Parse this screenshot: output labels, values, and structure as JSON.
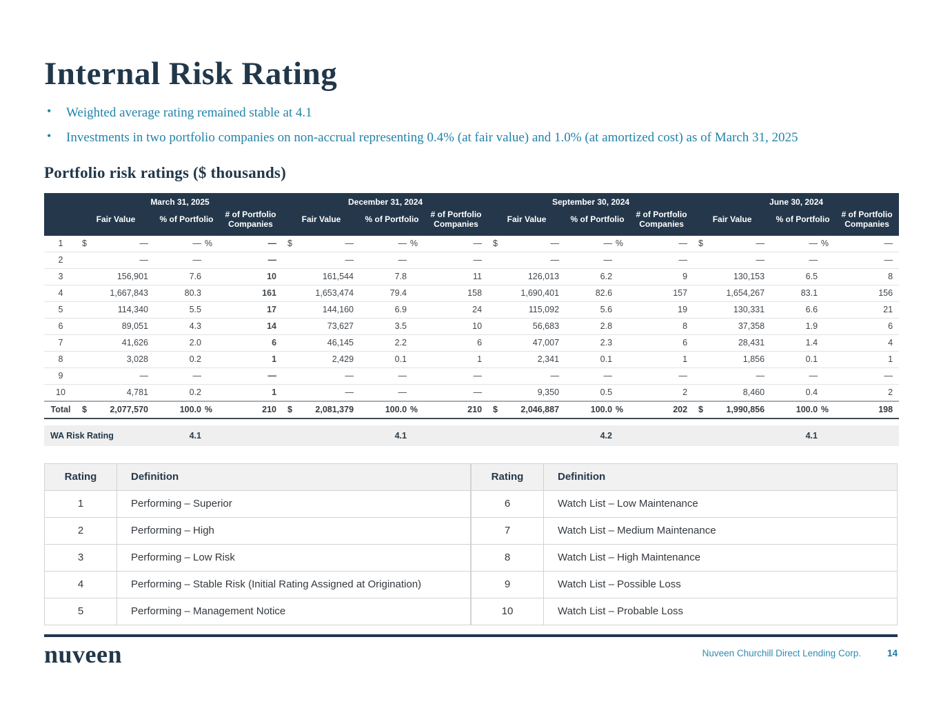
{
  "slide": {
    "title": "Internal Risk Rating",
    "bullets": [
      "Weighted average rating remained stable at 4.1",
      "Investments in two portfolio companies on non-accrual representing 0.4% (at fair value) and 1.0% (at amortized cost) as of March 31, 2025"
    ],
    "section_heading": "Portfolio risk ratings ($ thousands)"
  },
  "risk_table": {
    "period_headers": [
      "March 31, 2025",
      "December 31, 2024",
      "September 30, 2024",
      "June 30, 2024"
    ],
    "column_headers": [
      "Fair Value",
      "% of Portfolio",
      "# of Portfolio Companies"
    ],
    "rows": [
      {
        "label": "1",
        "symbols": true,
        "values": [
          [
            "—",
            "—",
            "—"
          ],
          [
            "—",
            "—",
            "—"
          ],
          [
            "—",
            "—",
            "—"
          ],
          [
            "—",
            "—",
            "—"
          ]
        ]
      },
      {
        "label": "2",
        "symbols": false,
        "values": [
          [
            "—",
            "—",
            "—"
          ],
          [
            "—",
            "—",
            "—"
          ],
          [
            "—",
            "—",
            "—"
          ],
          [
            "—",
            "—",
            "—"
          ]
        ]
      },
      {
        "label": "3",
        "symbols": false,
        "values": [
          [
            "156,901",
            "7.6",
            "10"
          ],
          [
            "161,544",
            "7.8",
            "11"
          ],
          [
            "126,013",
            "6.2",
            "9"
          ],
          [
            "130,153",
            "6.5",
            "8"
          ]
        ]
      },
      {
        "label": "4",
        "symbols": false,
        "values": [
          [
            "1,667,843",
            "80.3",
            "161"
          ],
          [
            "1,653,474",
            "79.4",
            "158"
          ],
          [
            "1,690,401",
            "82.6",
            "157"
          ],
          [
            "1,654,267",
            "83.1",
            "156"
          ]
        ]
      },
      {
        "label": "5",
        "symbols": false,
        "values": [
          [
            "114,340",
            "5.5",
            "17"
          ],
          [
            "144,160",
            "6.9",
            "24"
          ],
          [
            "115,092",
            "5.6",
            "19"
          ],
          [
            "130,331",
            "6.6",
            "21"
          ]
        ]
      },
      {
        "label": "6",
        "symbols": false,
        "values": [
          [
            "89,051",
            "4.3",
            "14"
          ],
          [
            "73,627",
            "3.5",
            "10"
          ],
          [
            "56,683",
            "2.8",
            "8"
          ],
          [
            "37,358",
            "1.9",
            "6"
          ]
        ]
      },
      {
        "label": "7",
        "symbols": false,
        "values": [
          [
            "41,626",
            "2.0",
            "6"
          ],
          [
            "46,145",
            "2.2",
            "6"
          ],
          [
            "47,007",
            "2.3",
            "6"
          ],
          [
            "28,431",
            "1.4",
            "4"
          ]
        ]
      },
      {
        "label": "8",
        "symbols": false,
        "values": [
          [
            "3,028",
            "0.2",
            "1"
          ],
          [
            "2,429",
            "0.1",
            "1"
          ],
          [
            "2,341",
            "0.1",
            "1"
          ],
          [
            "1,856",
            "0.1",
            "1"
          ]
        ]
      },
      {
        "label": "9",
        "symbols": false,
        "values": [
          [
            "—",
            "—",
            "—"
          ],
          [
            "—",
            "—",
            "—"
          ],
          [
            "—",
            "—",
            "—"
          ],
          [
            "—",
            "—",
            "—"
          ]
        ]
      },
      {
        "label": "10",
        "symbols": false,
        "values": [
          [
            "4,781",
            "0.2",
            "1"
          ],
          [
            "—",
            "—",
            "—"
          ],
          [
            "9,350",
            "0.5",
            "2"
          ],
          [
            "8,460",
            "0.4",
            "2"
          ]
        ]
      }
    ],
    "total": {
      "label": "Total",
      "symbols": true,
      "values": [
        [
          "2,077,570",
          "100.0",
          "210"
        ],
        [
          "2,081,379",
          "100.0",
          "210"
        ],
        [
          "2,046,887",
          "100.0",
          "202"
        ],
        [
          "1,990,856",
          "100.0",
          "198"
        ]
      ]
    },
    "wa_risk_rating": {
      "label": "WA Risk Rating",
      "values": [
        "4.1",
        "4.1",
        "4.2",
        "4.1"
      ]
    }
  },
  "definitions": {
    "headers": [
      "Rating",
      "Definition"
    ],
    "left": [
      {
        "rating": "1",
        "definition": "Performing – Superior"
      },
      {
        "rating": "2",
        "definition": "Performing – High"
      },
      {
        "rating": "3",
        "definition": "Performing – Low Risk"
      },
      {
        "rating": "4",
        "definition": "Performing – Stable Risk (Initial Rating Assigned at Origination)"
      },
      {
        "rating": "5",
        "definition": "Performing – Management Notice"
      }
    ],
    "right": [
      {
        "rating": "6",
        "definition": "Watch List – Low Maintenance"
      },
      {
        "rating": "7",
        "definition": "Watch List – Medium Maintenance"
      },
      {
        "rating": "8",
        "definition": "Watch List – High Maintenance"
      },
      {
        "rating": "9",
        "definition": "Watch List – Possible Loss"
      },
      {
        "rating": "10",
        "definition": "Watch List – Probable Loss"
      }
    ]
  },
  "footer": {
    "logo": "nuveen",
    "company": "Nuveen Churchill Direct Lending Corp.",
    "page": "14"
  },
  "colors": {
    "navy": "#21374a",
    "teal_text": "#2283a9",
    "table_header_bg": "#25384b",
    "wa_row_bg": "#efefef",
    "page_number_teal": "#1879a3"
  }
}
